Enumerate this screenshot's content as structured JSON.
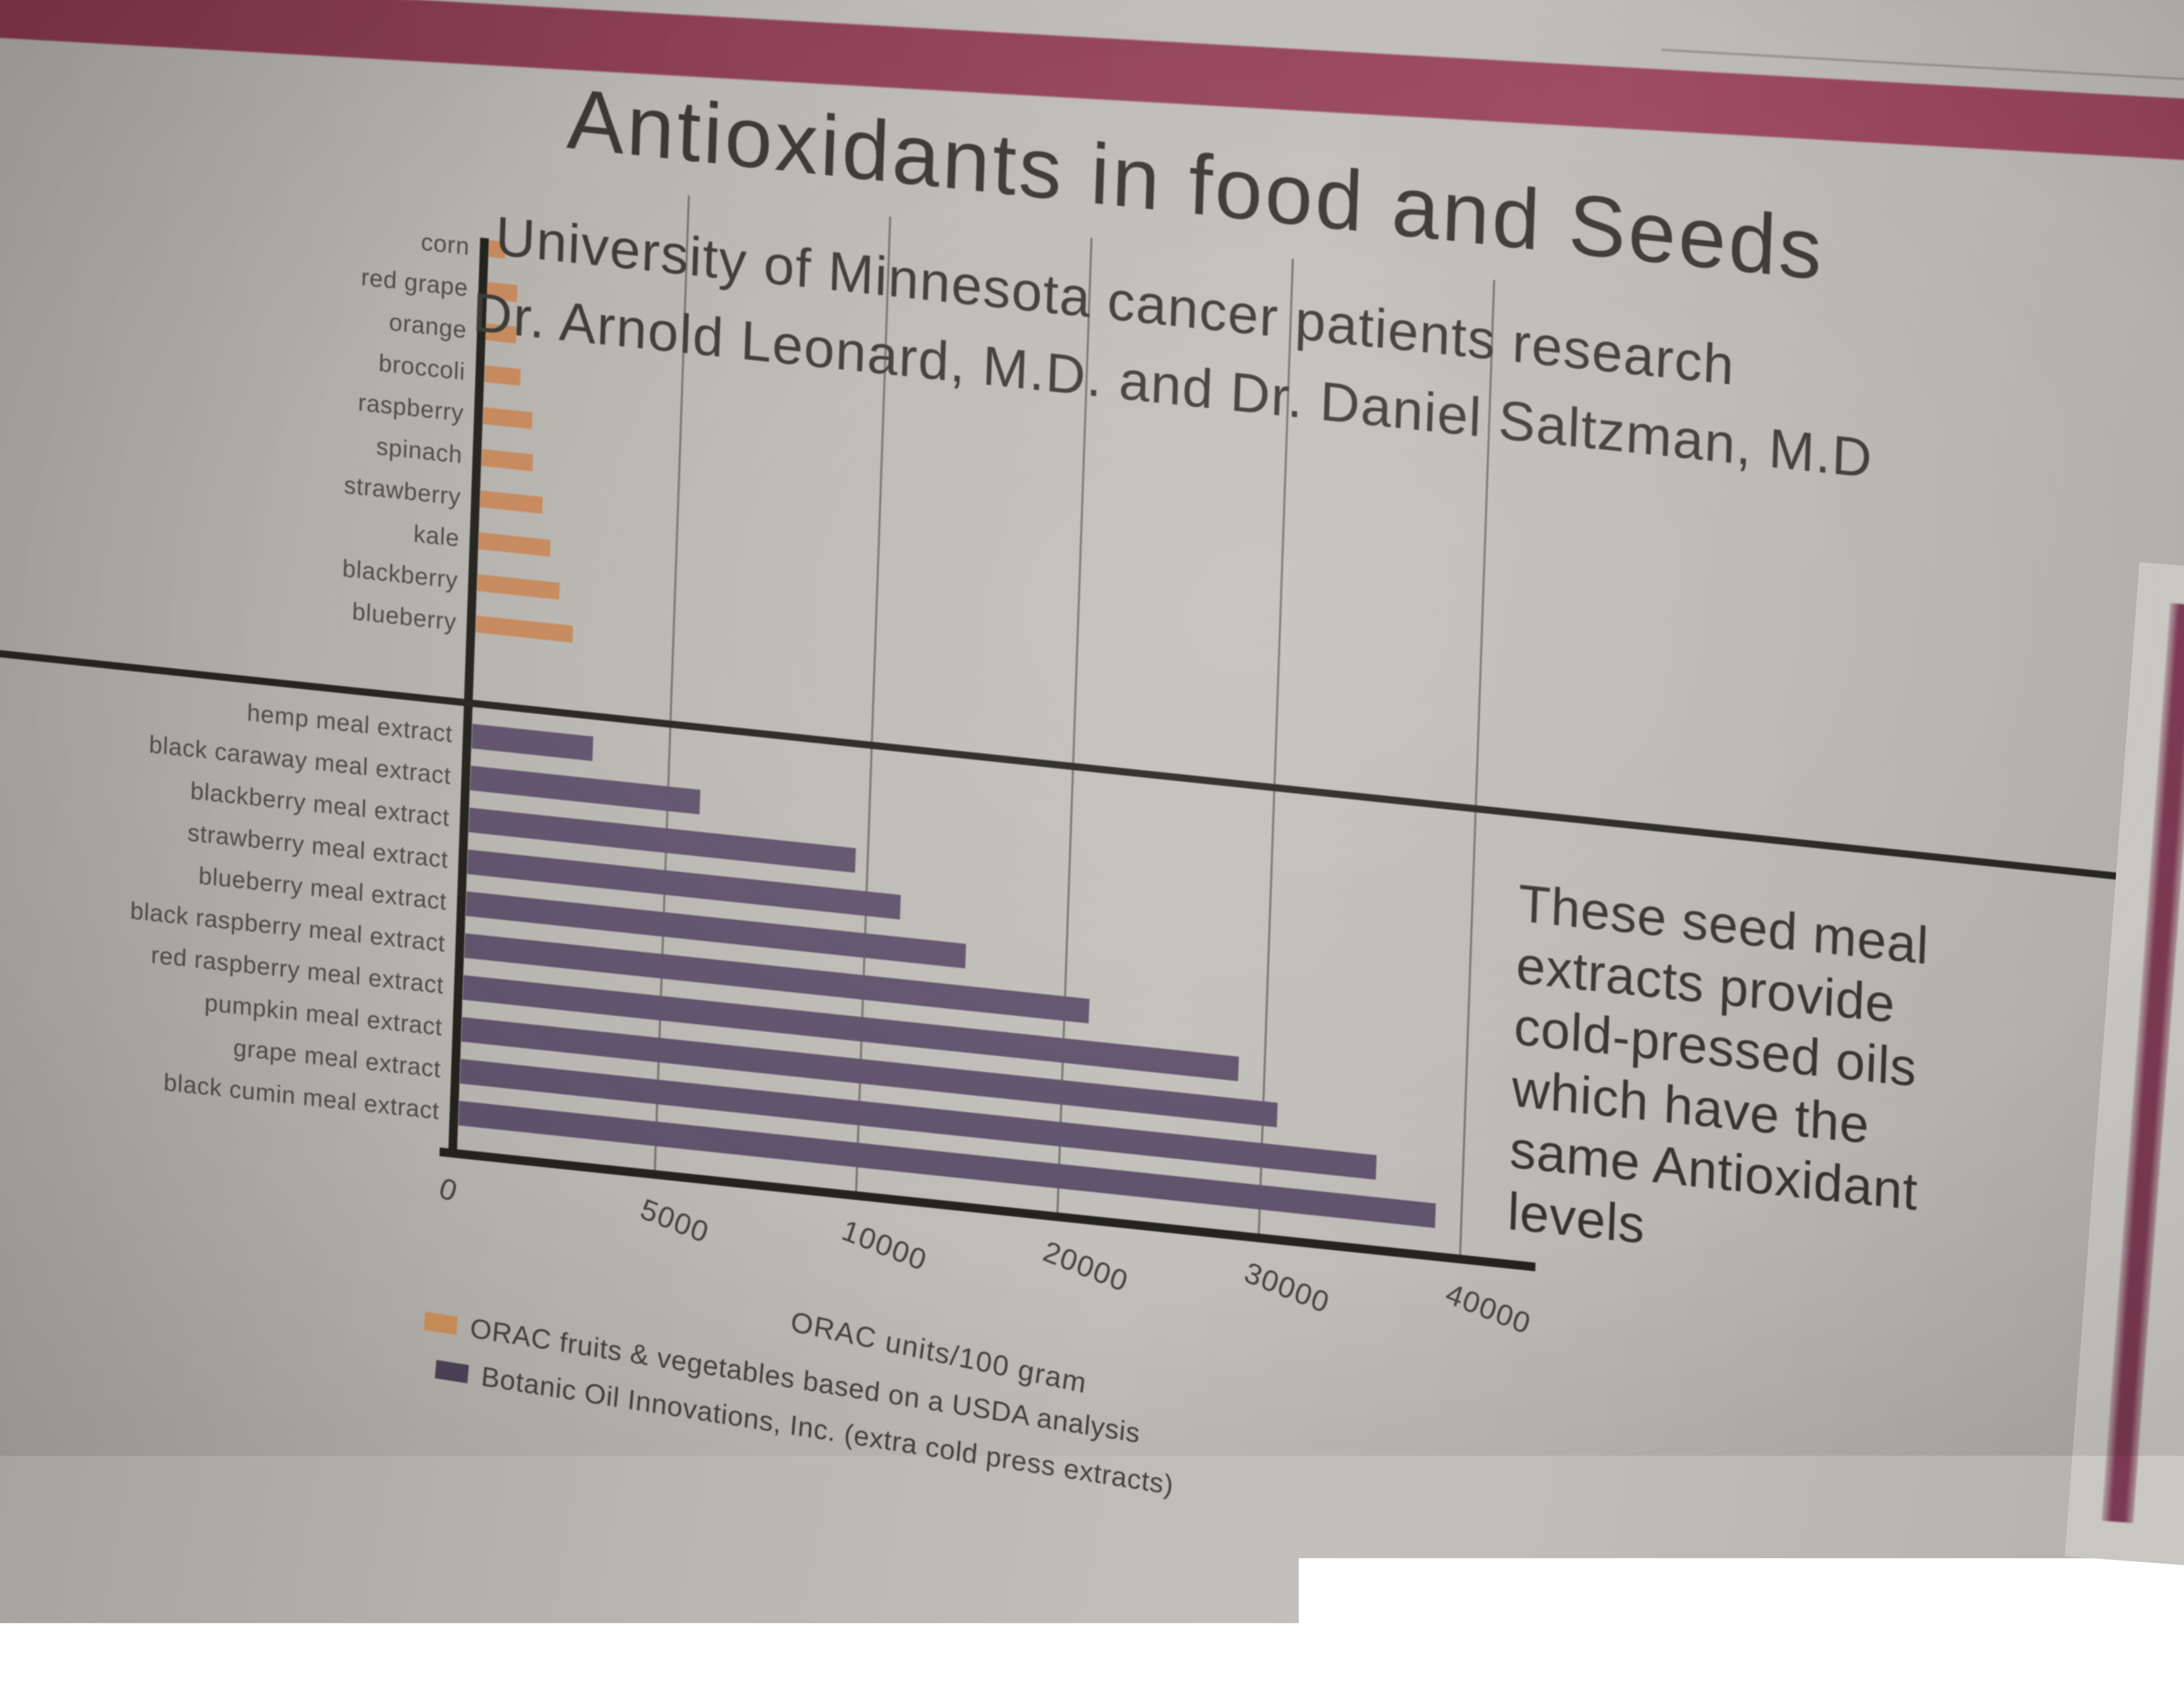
{
  "poster": {
    "title": "Antioxidants in food and Seeds",
    "subtitle_line1": "University of Minnesota cancer patients research",
    "subtitle_line2": "Dr. Arnold Leonard, M.D. and Dr. Daniel Saltzman, M.D",
    "note_text": "These seed meal\nextracts provide\ncold-pressed oils\nwhich have the\nsame Antioxidant\nlevels"
  },
  "chart_data": {
    "type": "bar",
    "orientation": "horizontal",
    "title": "Antioxidants in food and Seeds",
    "xlabel": "ORAC units/100 gram",
    "x_tick_labels": [
      "0",
      "5000",
      "10000",
      "20000",
      "30000",
      "40000"
    ],
    "x_tick_values": [
      0,
      5000,
      10000,
      20000,
      30000,
      40000
    ],
    "axis_note": "tick marks equally spaced although intervals change from 5000 to 10000 (non-linear axis)",
    "grid": true,
    "legend_position": "bottom-left",
    "series": [
      {
        "name": "ORAC fruits & vegetables based on a USDA analysis",
        "color": "#c6895c",
        "categories": [
          "corn",
          "red grape",
          "orange",
          "broccoli",
          "raspberry",
          "spinach",
          "strawberry",
          "kale",
          "blackberry",
          "blueberry"
        ],
        "values": [
          400,
          739,
          750,
          890,
          1220,
          1260,
          1540,
          1770,
          2036,
          2400
        ]
      },
      {
        "name": "Botanic Oil Innovations, Inc. (extra cold press extracts)",
        "color": "#60536c",
        "categories": [
          "hemp meal extract",
          "black caraway meal extract",
          "blackberry meal extract",
          "strawberry meal extract",
          "blueberry meal extract",
          "black raspberry meal extract",
          "red raspberry meal extract",
          "pumpkin meal extract",
          "grape meal extract",
          "black cumin meal extract"
        ],
        "values": [
          3000,
          5700,
          9600,
          11500,
          14800,
          21000,
          28500,
          30500,
          35500,
          38500
        ]
      }
    ],
    "legend": [
      {
        "label": "ORAC fruits & vegetables based on a USDA analysis",
        "color": "#d2945c"
      },
      {
        "label": "Botanic Oil Innovations, Inc. (extra cold press extracts)",
        "color": "#4e4458"
      }
    ]
  },
  "colors": {
    "paper": "#bbb8b3",
    "frame_band": "#8e4156",
    "right_strip": "#7b3a52",
    "axis_line": "#24231e",
    "gridline": "#73736d",
    "orange_bar": "#c6895c",
    "purple_bar": "#60536c",
    "text_dark": "#3a3933"
  }
}
